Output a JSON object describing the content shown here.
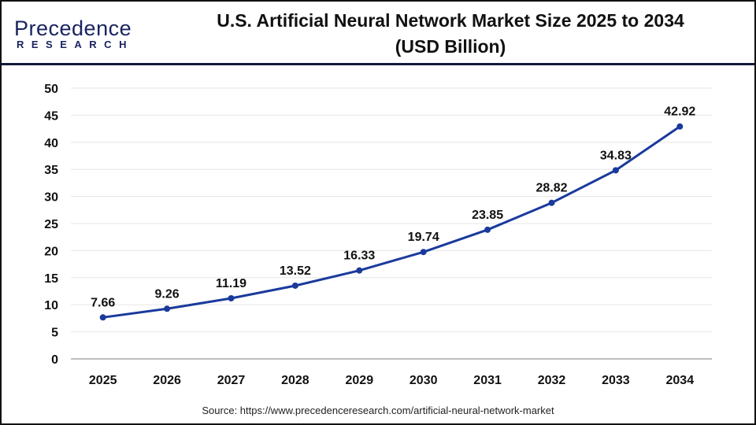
{
  "logo": {
    "line1": "Precedence",
    "line2": "RESEARCH"
  },
  "title_line1": "U.S. Artificial Neural Network Market Size 2025 to 2034",
  "title_line2": "(USD Billion)",
  "source": "Source: https://www.precedenceresearch.com/artificial-neural-network-market",
  "colors": {
    "line": "#1a3a9c",
    "brand": "#1a2460",
    "grid": "#e6e6e6",
    "axis": "#bdbdbd"
  },
  "chart_data": {
    "type": "line",
    "title": "U.S. Artificial Neural Network Market Size 2025 to 2034 (USD Billion)",
    "categories": [
      "2025",
      "2026",
      "2027",
      "2028",
      "2029",
      "2030",
      "2031",
      "2032",
      "2033",
      "2034"
    ],
    "series": [
      {
        "values": [
          7.66,
          9.26,
          11.19,
          13.52,
          16.33,
          19.74,
          23.85,
          28.82,
          34.83,
          42.92
        ]
      }
    ],
    "data_labels": [
      "7.66",
      "9.26",
      "11.19",
      "13.52",
      "16.33",
      "19.74",
      "23.85",
      "28.82",
      "34.83",
      "42.92"
    ],
    "ylim": [
      0,
      50
    ],
    "yticks": [
      0,
      5,
      10,
      15,
      20,
      25,
      30,
      35,
      40,
      45,
      50
    ],
    "grid": true,
    "xlabel": "",
    "ylabel": ""
  }
}
